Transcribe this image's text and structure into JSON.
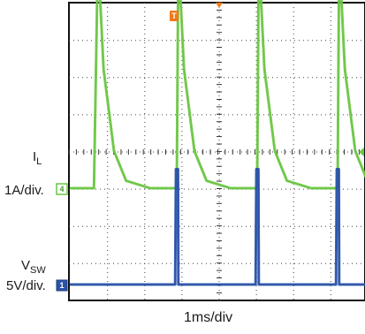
{
  "chart_data": {
    "type": "line",
    "title": "",
    "xlabel": "1ms/div",
    "time_per_division_ms": 1,
    "grid": true,
    "grid_divisions": {
      "x": 10,
      "y": 8
    },
    "grid_style": "dotted with minor ticks on center crosshair",
    "trigger_marker": "T",
    "series": [
      {
        "name_main": "I",
        "name_sub": "L",
        "scale": "1A/div.",
        "channel_marker": "4",
        "color": "#6cc644",
        "x_ms": [
          0,
          0.3,
          0.35,
          0.42,
          0.55,
          0.7,
          1.0,
          1.3,
          1.32,
          1.33,
          1.35,
          1.42,
          1.55,
          1.7,
          2.0,
          2.3,
          2.32,
          2.33,
          2.35,
          2.42,
          2.55,
          2.7,
          3.0,
          3.3,
          3.32,
          3.33,
          3.35,
          3.42,
          3.55,
          3.7,
          3.9
        ],
        "y_div": [
          0,
          0,
          6.3,
          3.2,
          1.0,
          0.2,
          0,
          0,
          0,
          0,
          6.3,
          3.2,
          1.0,
          0.2,
          0,
          0,
          0,
          0,
          6.3,
          3.2,
          1.0,
          0.2,
          0,
          0,
          0,
          0,
          6.3,
          3.2,
          1.0,
          0.2,
          0
        ]
      },
      {
        "name_main": "V",
        "name_sub": "SW",
        "scale": "5V/div.",
        "channel_marker": "1",
        "color": "#2a52a8",
        "x_ms": [
          0,
          1.31,
          1.32,
          1.345,
          1.35,
          2.31,
          2.32,
          2.345,
          2.35,
          3.31,
          3.32,
          3.345,
          3.35,
          3.9
        ],
        "y_div": [
          0,
          0,
          3.1,
          3.1,
          0,
          0,
          3.1,
          3.1,
          0,
          0,
          3.1,
          3.1,
          0,
          0
        ]
      }
    ]
  }
}
